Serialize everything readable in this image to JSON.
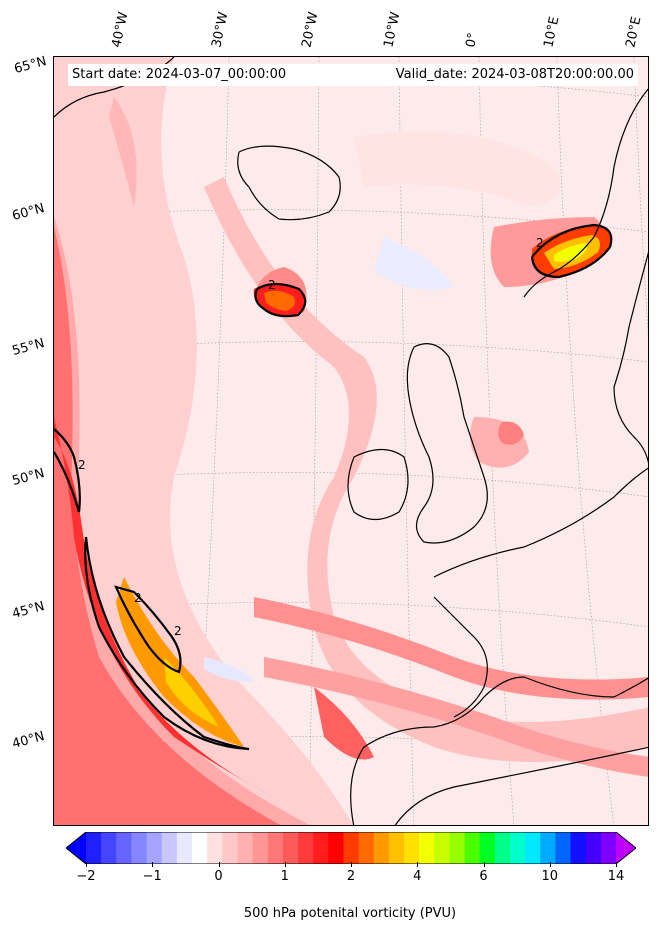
{
  "header": {
    "start_date": "Start date: 2024-03-07_00:00:00",
    "valid_date": "Valid_date: 2024-03-08T20:00:00.00"
  },
  "longitude_labels": [
    "40°W",
    "30°W",
    "20°W",
    "10°W",
    "0°",
    "10°E",
    "20°E"
  ],
  "latitude_labels": [
    "65°N",
    "60°N",
    "55°N",
    "50°N",
    "45°N",
    "40°N"
  ],
  "colorbar": {
    "ticks": [
      "−2",
      "−1",
      "0",
      "1",
      "2",
      "4",
      "6",
      "10",
      "14"
    ],
    "title": "500 hPa potenital vorticity (PVU)",
    "colors": [
      "#0000ff",
      "#2020ff",
      "#4545ff",
      "#6666ff",
      "#8585ff",
      "#a5a5ff",
      "#c8c8ff",
      "#e8e8ff",
      "#ffffff",
      "#ffe0e0",
      "#ffc8c8",
      "#ffb0b0",
      "#ff9696",
      "#ff7878",
      "#ff5a5a",
      "#ff3c3c",
      "#ff1e1e",
      "#ff0000",
      "#ff3c00",
      "#ff6a00",
      "#ff9900",
      "#ffc000",
      "#ffe000",
      "#f2ff00",
      "#c8ff00",
      "#96ff00",
      "#4aff00",
      "#00ff22",
      "#00ff88",
      "#00ffcc",
      "#00e8ff",
      "#00aaff",
      "#0066ff",
      "#1010ff",
      "#4400ff",
      "#8000ff",
      "#c000ff"
    ]
  },
  "contour_labels": [
    "2",
    "2",
    "2",
    "2",
    "2"
  ]
}
